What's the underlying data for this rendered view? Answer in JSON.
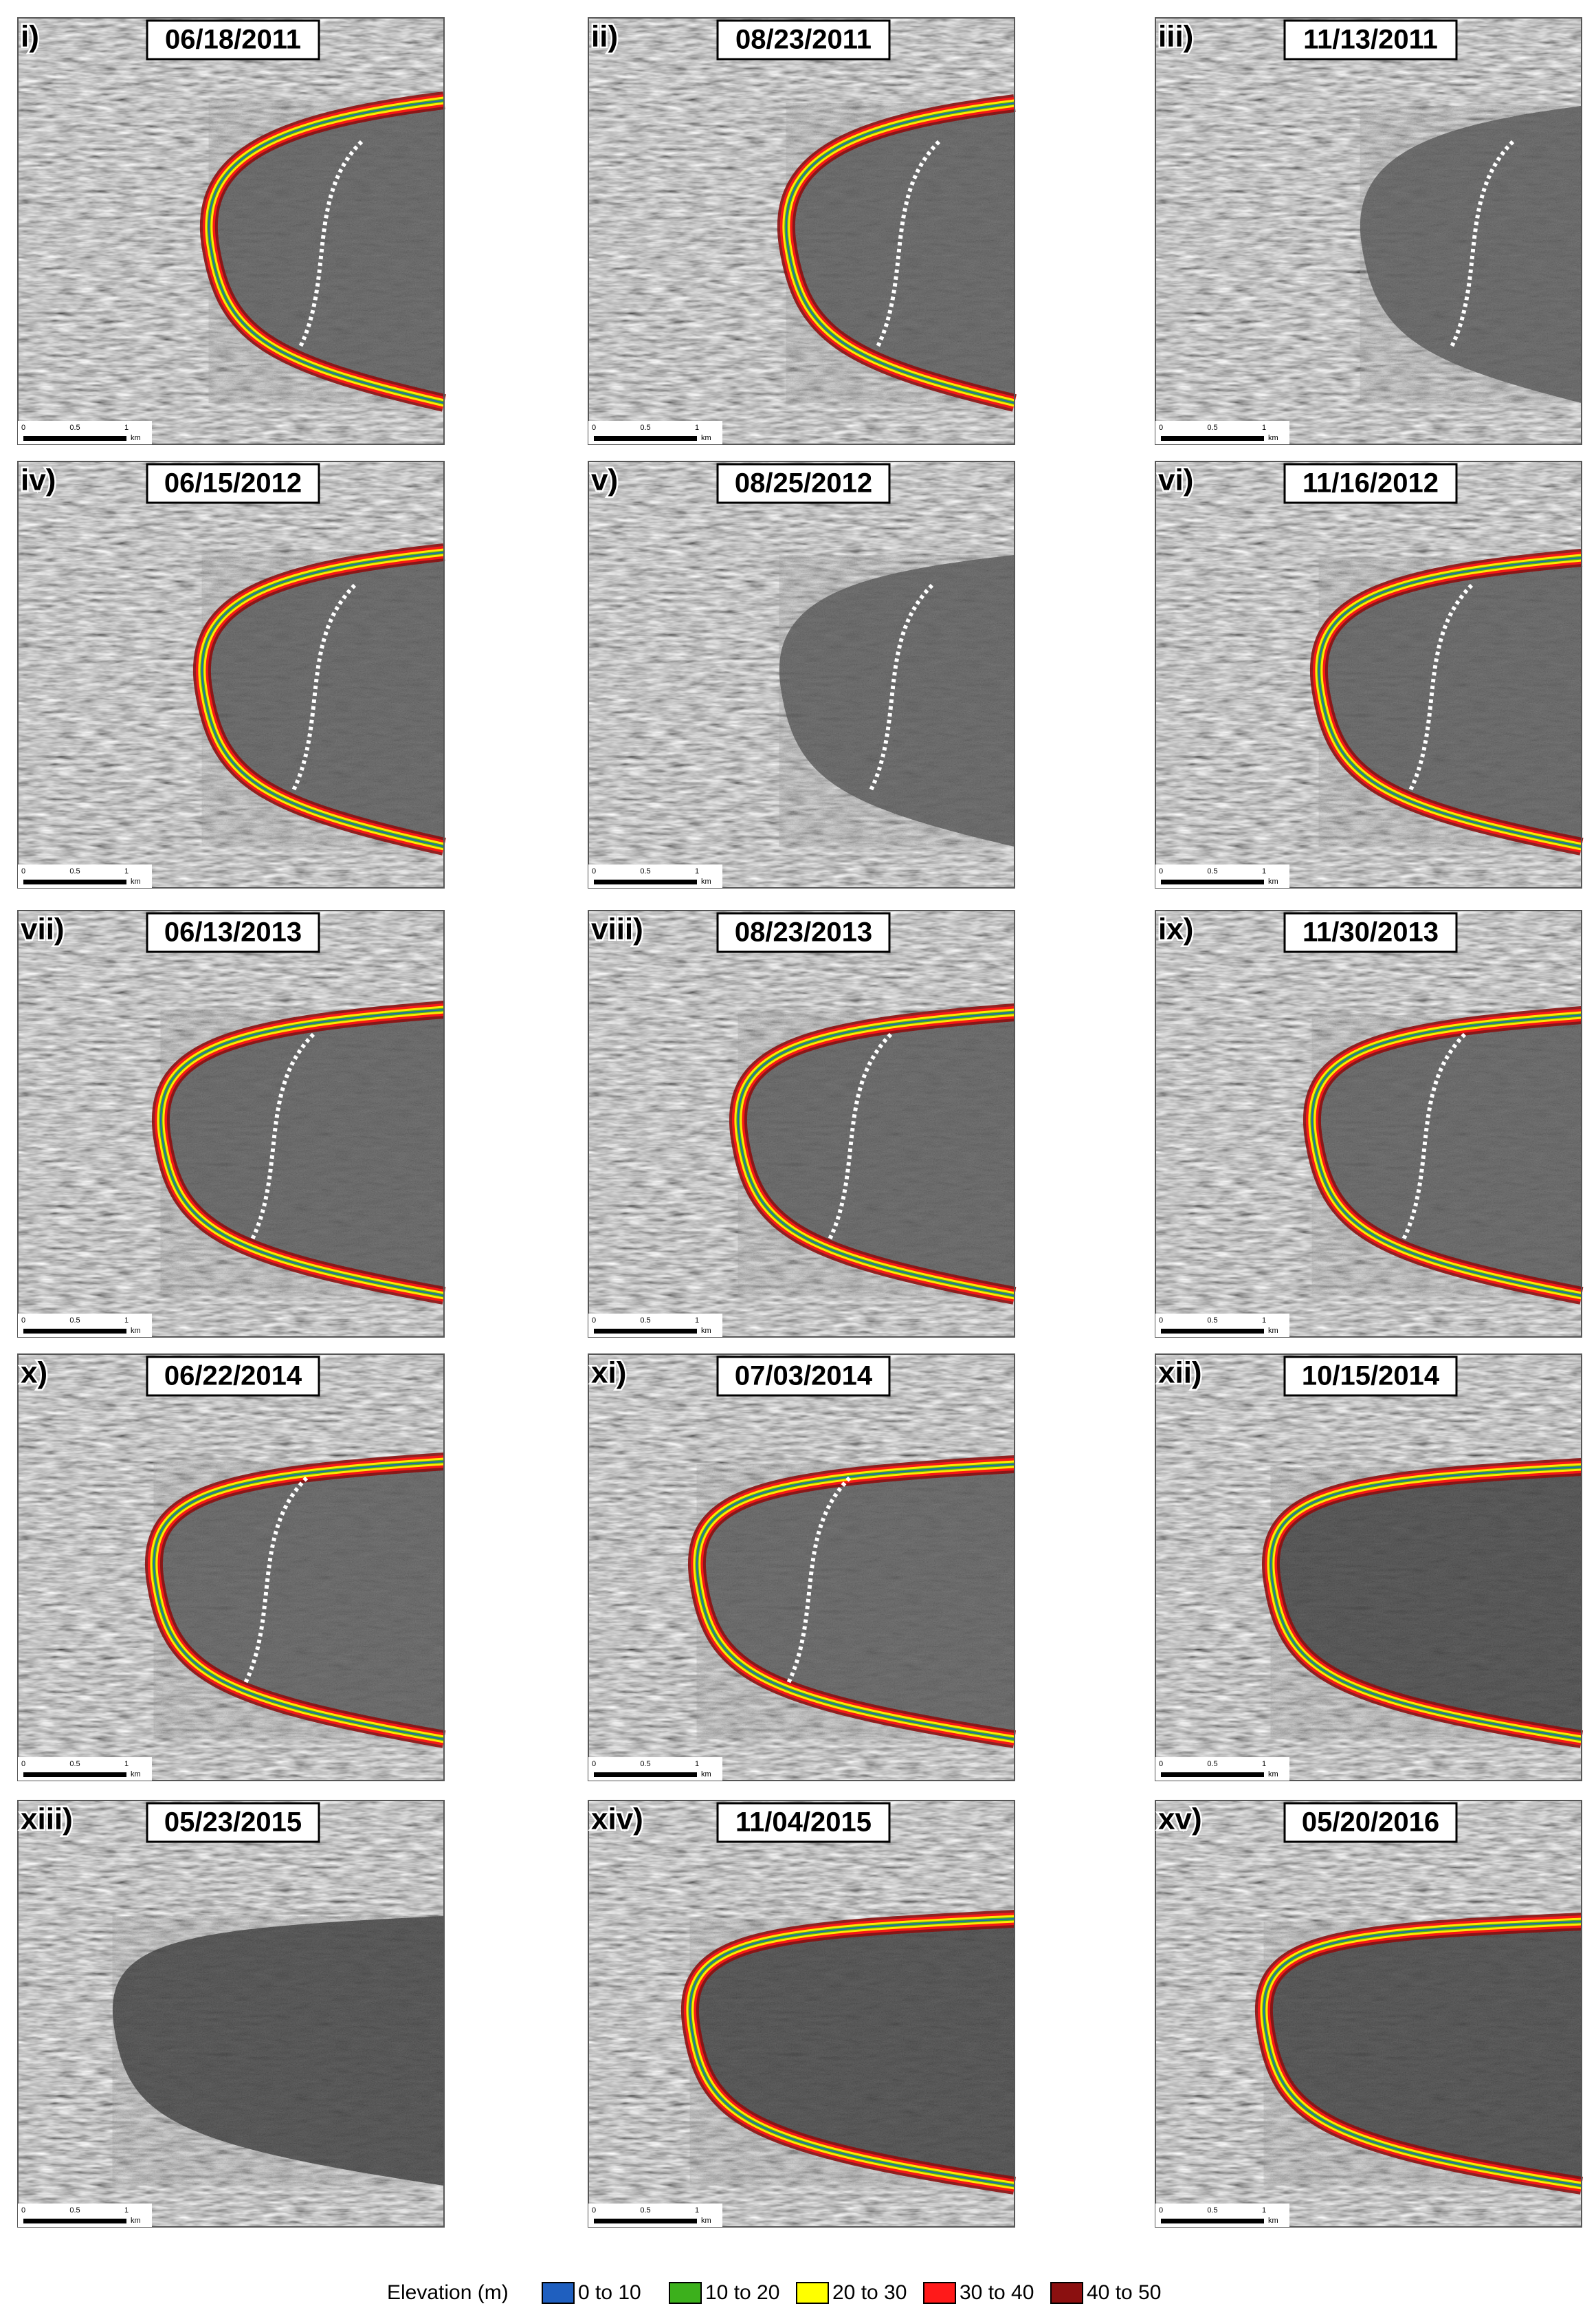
{
  "panels": [
    {
      "label": "i)",
      "date": "06/18/2011"
    },
    {
      "label": "ii)",
      "date": "08/23/2011"
    },
    {
      "label": "iii)",
      "date": "11/13/2011"
    },
    {
      "label": "iv)",
      "date": "06/15/2012"
    },
    {
      "label": "v)",
      "date": "08/25/2012"
    },
    {
      "label": "vi)",
      "date": "11/16/2012"
    },
    {
      "label": "vii)",
      "date": "06/13/2013"
    },
    {
      "label": "viii)",
      "date": "08/23/2013"
    },
    {
      "label": "ix)",
      "date": "11/30/2013"
    },
    {
      "label": "x)",
      "date": "06/22/2014"
    },
    {
      "label": "xi)",
      "date": "07/03/2014"
    },
    {
      "label": "xii)",
      "date": "10/15/2014"
    },
    {
      "label": "xiii)",
      "date": "05/23/2015"
    },
    {
      "label": "xiv)",
      "date": "11/04/2015"
    },
    {
      "label": "xv)",
      "date": "05/20/2016"
    }
  ],
  "scale_bar": {
    "ticks": [
      "0",
      "0.5",
      "1"
    ],
    "unit": "km"
  },
  "legend": {
    "title": "Elevation (m)",
    "items": [
      {
        "label": "0 to 10",
        "color": "#1f5fbf"
      },
      {
        "label": "10 to 20",
        "color": "#3cb01c"
      },
      {
        "label": "20 to 30",
        "color": "#ffff00"
      },
      {
        "label": "30 to 40",
        "color": "#ff1a1a"
      },
      {
        "label": "40 to 50",
        "color": "#8b1010"
      }
    ]
  }
}
